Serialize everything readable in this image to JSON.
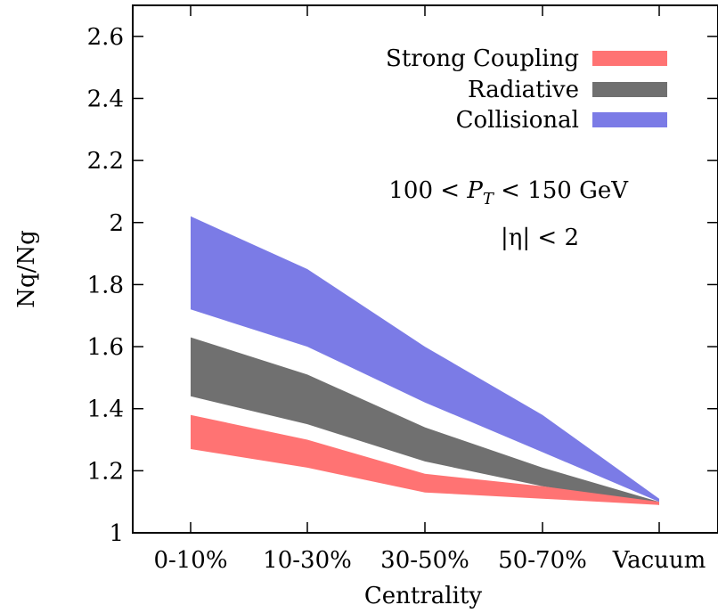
{
  "chart_data": {
    "type": "area",
    "title": "",
    "xlabel": "Centrality",
    "ylabel": "Nq/Ng",
    "categories": [
      "0-10%",
      "10-30%",
      "30-50%",
      "50-70%",
      "Vacuum"
    ],
    "ylim": [
      1,
      2.7
    ],
    "yticks": [
      1,
      1.2,
      1.4,
      1.6,
      1.8,
      2,
      2.2,
      2.4,
      2.6
    ],
    "ytick_labels": [
      "1",
      "1.2",
      "1.4",
      "1.6",
      "1.8",
      "2",
      "2.2",
      "2.4",
      "2.6"
    ],
    "grid": false,
    "legend_position": "top-right",
    "series": [
      {
        "name": "Collisional",
        "color": "#7b7be6",
        "lower": [
          1.72,
          1.6,
          1.42,
          1.26,
          1.1
        ],
        "upper": [
          2.02,
          1.85,
          1.6,
          1.38,
          1.11
        ]
      },
      {
        "name": "Radiative",
        "color": "#707070",
        "lower": [
          1.44,
          1.35,
          1.23,
          1.15,
          1.09
        ],
        "upper": [
          1.63,
          1.51,
          1.34,
          1.21,
          1.1
        ]
      },
      {
        "name": "Strong Coupling",
        "color": "#ff7373",
        "lower": [
          1.27,
          1.21,
          1.13,
          1.11,
          1.09
        ],
        "upper": [
          1.38,
          1.3,
          1.19,
          1.15,
          1.1
        ]
      }
    ],
    "legend_order": [
      "Strong Coupling",
      "Radiative",
      "Collisional"
    ],
    "annotations": {
      "pt_text": "100 < P_T < 150 GeV",
      "eta_text": "|η| < 2"
    }
  }
}
